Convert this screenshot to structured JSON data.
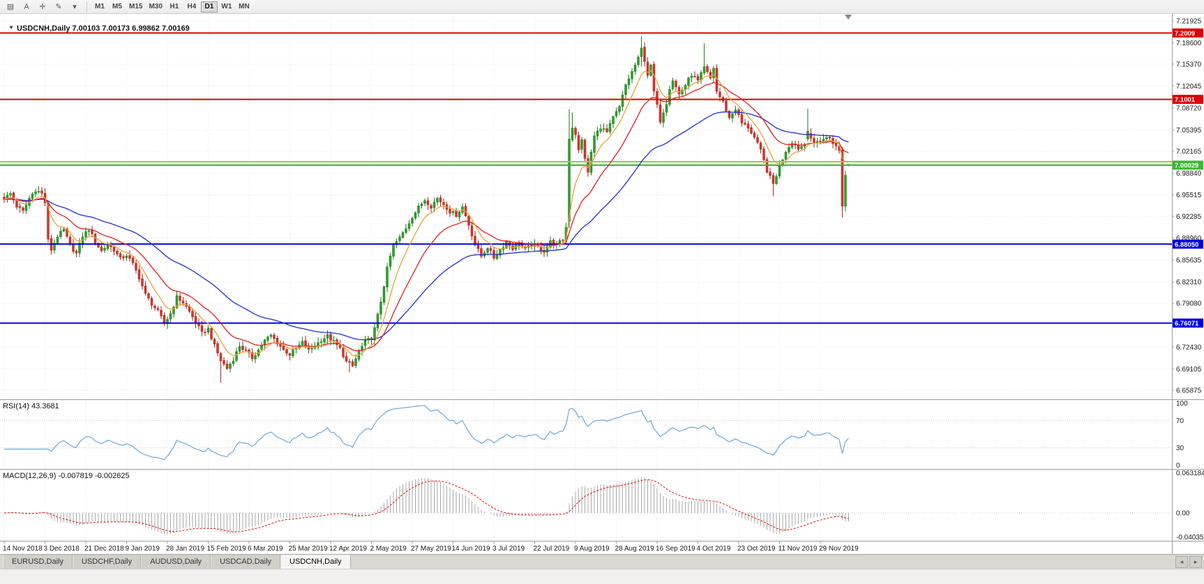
{
  "toolbar": {
    "icons": [
      {
        "name": "chart-menu-icon",
        "glyph": "▤"
      },
      {
        "name": "cursor-tool-icon",
        "glyph": "A"
      },
      {
        "name": "crosshair-icon",
        "glyph": "✛"
      },
      {
        "name": "draw-tool-icon",
        "glyph": "✎"
      },
      {
        "name": "draw-dropdown-icon",
        "glyph": "▾"
      }
    ],
    "timeframes": [
      "M1",
      "M5",
      "M15",
      "M30",
      "H1",
      "H4",
      "D1",
      "W1",
      "MN"
    ],
    "active_timeframe": "D1"
  },
  "chart_header": {
    "marker": "▼",
    "title": "USDCNH,Daily 7.00103 7.00173 6.99862 7.00169"
  },
  "indicators": {
    "rsi_label": "RSI(14) 43.3681",
    "macd_label": "MACD(12,26,9) -0.007819 -0.002625"
  },
  "axes": {
    "price_ticks": [
      "7.21925",
      "7.18600",
      "7.15370",
      "7.12045",
      "7.08720",
      "7.05395",
      "7.02165",
      "6.98840",
      "6.95515",
      "6.92285",
      "6.88960",
      "6.85635",
      "6.82310",
      "6.79080",
      "6.75755",
      "6.72430",
      "6.69105",
      "6.65875"
    ],
    "rsi_ticks": [
      "100",
      "70",
      "30",
      "0"
    ],
    "macd_ticks": [
      "0.063184",
      "0.00",
      "-0.040355"
    ],
    "dates": [
      "14 Nov 2018",
      "3 Dec 2018",
      "21 Dec 2018",
      "9 Jan 2019",
      "28 Jan 2019",
      "15 Feb 2019",
      "6 Mar 2019",
      "25 Mar 2019",
      "12 Apr 2019",
      "2 May 2019",
      "27 May 2019",
      "14 Jun 2019",
      "3 Jul 2019",
      "22 Jul 2019",
      "9 Aug 2019",
      "28 Aug 2019",
      "16 Sep 2019",
      "4 Oct 2019",
      "23 Oct 2019",
      "11 Nov 2019",
      "29 Nov 2019"
    ]
  },
  "levels": [
    {
      "price": 7.2009,
      "label": "7.2009",
      "color": "#e00000",
      "width": 2
    },
    {
      "price": 7.1001,
      "label": "7.1001",
      "color": "#e00000",
      "width": 2
    },
    {
      "price": 7.0056,
      "label": "",
      "color": "#9acd32",
      "width": 2
    },
    {
      "price": 7.00029,
      "label": "7.00029",
      "color": "#3cb832",
      "width": 2
    },
    {
      "price": 6.8805,
      "label": "6.88050",
      "color": "#0000e6",
      "width": 2
    },
    {
      "price": 6.76071,
      "label": "6.76071",
      "color": "#0000e6",
      "width": 2
    }
  ],
  "tabs": {
    "items": [
      "EURUSD,Daily",
      "USDCHF,Daily",
      "AUDUSD,Daily",
      "USDCAD,Daily",
      "USDCNH,Daily"
    ],
    "active": "USDCNH,Daily",
    "scroll_left": "◂",
    "scroll_right": "▸"
  },
  "chart_data": {
    "type": "candlestick",
    "symbol": "USDCNH",
    "timeframe": "Daily",
    "n_bars": 270,
    "price_range": [
      6.65875,
      7.21925
    ],
    "current_bar": {
      "open": 7.00103,
      "high": 7.00173,
      "low": 6.99862,
      "close": 7.00169
    },
    "moving_averages": [
      {
        "period": 8,
        "color": "#e8a33d"
      },
      {
        "period": 20,
        "color": "#e02020"
      },
      {
        "period": 50,
        "color": "#2030cc"
      }
    ],
    "rsi": {
      "period": 14,
      "current": 43.3681,
      "color": "#6aa7dc",
      "levels": [
        70,
        30
      ]
    },
    "macd": {
      "fast": 12,
      "slow": 26,
      "signal_period": 9,
      "current_macd": -0.007819,
      "current_signal": -0.002625,
      "axis_max": 0.063184,
      "axis_min": -0.040355
    },
    "style": {
      "up": "#2fa12e",
      "up_border": "#1d7a1c",
      "down": "#dd3427",
      "down_border": "#a2261d",
      "macd_hist": "#a8a8a8",
      "macd_signal": "#dd1111",
      "grid": "#e6e6e6",
      "axis_text": "#1a1a1a",
      "axis_border": "#9a9a9a"
    },
    "anchors": [
      [
        0,
        6.95
      ],
      [
        2,
        6.957
      ],
      [
        4,
        6.938
      ],
      [
        6,
        6.93
      ],
      [
        8,
        6.95
      ],
      [
        10,
        6.963
      ],
      [
        12,
        6.957
      ],
      [
        13,
        6.944
      ],
      [
        14,
        6.886
      ],
      [
        15,
        6.872
      ],
      [
        17,
        6.893
      ],
      [
        19,
        6.902
      ],
      [
        21,
        6.878
      ],
      [
        23,
        6.866
      ],
      [
        25,
        6.893
      ],
      [
        27,
        6.903
      ],
      [
        29,
        6.884
      ],
      [
        31,
        6.87
      ],
      [
        33,
        6.88
      ],
      [
        35,
        6.872
      ],
      [
        37,
        6.858
      ],
      [
        39,
        6.864
      ],
      [
        41,
        6.85
      ],
      [
        43,
        6.83
      ],
      [
        45,
        6.804
      ],
      [
        47,
        6.79
      ],
      [
        49,
        6.778
      ],
      [
        51,
        6.76
      ],
      [
        53,
        6.775
      ],
      [
        55,
        6.8
      ],
      [
        57,
        6.792
      ],
      [
        59,
        6.778
      ],
      [
        61,
        6.762
      ],
      [
        63,
        6.745
      ],
      [
        65,
        6.752
      ],
      [
        67,
        6.726
      ],
      [
        69,
        6.704
      ],
      [
        71,
        6.692
      ],
      [
        73,
        6.706
      ],
      [
        75,
        6.726
      ],
      [
        77,
        6.718
      ],
      [
        79,
        6.708
      ],
      [
        81,
        6.72
      ],
      [
        83,
        6.734
      ],
      [
        85,
        6.742
      ],
      [
        87,
        6.731
      ],
      [
        89,
        6.72
      ],
      [
        91,
        6.713
      ],
      [
        93,
        6.722
      ],
      [
        95,
        6.731
      ],
      [
        97,
        6.719
      ],
      [
        99,
        6.726
      ],
      [
        101,
        6.735
      ],
      [
        103,
        6.741
      ],
      [
        105,
        6.732
      ],
      [
        107,
        6.722
      ],
      [
        109,
        6.702
      ],
      [
        111,
        6.695
      ],
      [
        113,
        6.718
      ],
      [
        115,
        6.732
      ],
      [
        117,
        6.738
      ],
      [
        118,
        6.752
      ],
      [
        119,
        6.772
      ],
      [
        120,
        6.794
      ],
      [
        121,
        6.818
      ],
      [
        122,
        6.843
      ],
      [
        123,
        6.862
      ],
      [
        124,
        6.878
      ],
      [
        126,
        6.89
      ],
      [
        128,
        6.905
      ],
      [
        130,
        6.922
      ],
      [
        132,
        6.936
      ],
      [
        134,
        6.948
      ],
      [
        136,
        6.938
      ],
      [
        138,
        6.95
      ],
      [
        140,
        6.941
      ],
      [
        142,
        6.93
      ],
      [
        144,
        6.925
      ],
      [
        146,
        6.937
      ],
      [
        148,
        6.91
      ],
      [
        150,
        6.88
      ],
      [
        152,
        6.862
      ],
      [
        154,
        6.876
      ],
      [
        156,
        6.86
      ],
      [
        158,
        6.872
      ],
      [
        160,
        6.884
      ],
      [
        162,
        6.874
      ],
      [
        164,
        6.881
      ],
      [
        166,
        6.872
      ],
      [
        168,
        6.88
      ],
      [
        170,
        6.876
      ],
      [
        172,
        6.87
      ],
      [
        174,
        6.884
      ],
      [
        176,
        6.879
      ],
      [
        178,
        6.888
      ],
      [
        179,
        6.906
      ],
      [
        180,
        7.04
      ],
      [
        181,
        7.058
      ],
      [
        182,
        7.048
      ],
      [
        183,
        7.022
      ],
      [
        184,
        7.038
      ],
      [
        185,
        7.012
      ],
      [
        186,
        6.988
      ],
      [
        187,
        7.02
      ],
      [
        188,
        7.044
      ],
      [
        190,
        7.058
      ],
      [
        192,
        7.05
      ],
      [
        194,
        7.072
      ],
      [
        196,
        7.088
      ],
      [
        198,
        7.122
      ],
      [
        200,
        7.142
      ],
      [
        202,
        7.162
      ],
      [
        203,
        7.178
      ],
      [
        204,
        7.16
      ],
      [
        205,
        7.138
      ],
      [
        206,
        7.15
      ],
      [
        207,
        7.112
      ],
      [
        208,
        7.09
      ],
      [
        209,
        7.068
      ],
      [
        210,
        7.082
      ],
      [
        211,
        7.095
      ],
      [
        212,
        7.118
      ],
      [
        213,
        7.13
      ],
      [
        215,
        7.108
      ],
      [
        217,
        7.122
      ],
      [
        219,
        7.138
      ],
      [
        221,
        7.128
      ],
      [
        223,
        7.148
      ],
      [
        225,
        7.132
      ],
      [
        226,
        7.148
      ],
      [
        227,
        7.112
      ],
      [
        229,
        7.096
      ],
      [
        231,
        7.072
      ],
      [
        233,
        7.086
      ],
      [
        235,
        7.064
      ],
      [
        237,
        7.058
      ],
      [
        239,
        7.042
      ],
      [
        241,
        7.022
      ],
      [
        243,
        6.992
      ],
      [
        245,
        6.972
      ],
      [
        247,
        6.998
      ],
      [
        249,
        7.022
      ],
      [
        251,
        7.036
      ],
      [
        253,
        7.026
      ],
      [
        255,
        7.032
      ],
      [
        256,
        7.052
      ],
      [
        257,
        7.042
      ],
      [
        258,
        7.032
      ],
      [
        259,
        7.036
      ],
      [
        261,
        7.04
      ],
      [
        263,
        7.042
      ],
      [
        264,
        7.035
      ],
      [
        265,
        7.028
      ],
      [
        266,
        7.022
      ],
      [
        267,
        6.938
      ],
      [
        268,
        6.985
      ],
      [
        269,
        7.002
      ]
    ],
    "bar_overrides": {
      "69": {
        "l": 6.67
      },
      "110": {
        "l": 6.686
      },
      "180": {
        "o": 6.915,
        "h": 7.085,
        "l": 6.905,
        "c": 7.04
      },
      "181": {
        "h": 7.08
      },
      "203": {
        "o": 7.165,
        "h": 7.196,
        "l": 7.15,
        "c": 7.178
      },
      "223": {
        "h": 7.185
      },
      "245": {
        "l": 6.953
      },
      "256": {
        "o": 7.04,
        "h": 7.086,
        "l": 7.036,
        "c": 7.052
      },
      "267": {
        "o": 7.024,
        "h": 7.028,
        "l": 6.921,
        "c": 6.938
      },
      "268": {
        "o": 6.938,
        "h": 6.992,
        "l": 6.93,
        "c": 6.985
      },
      "269": {
        "o": 7.00103,
        "h": 7.00173,
        "l": 6.99862,
        "c": 7.00169
      }
    }
  }
}
